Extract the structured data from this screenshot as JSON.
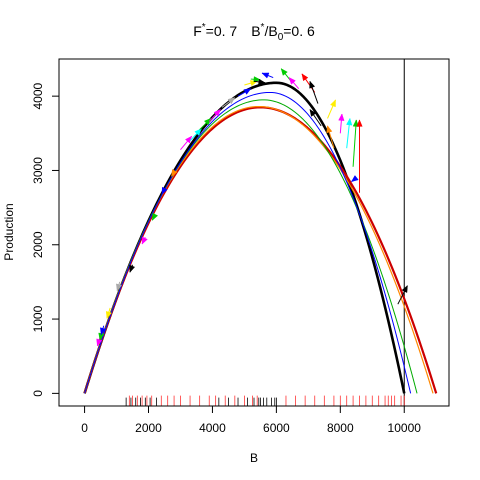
{
  "chart_data": {
    "type": "line",
    "title": {
      "f_label": "F",
      "f_superscript": "*",
      "f_value": "=0. 7",
      "b_label": "B",
      "b_superscript": "*",
      "b_slash": "/B",
      "b_subscript": "0",
      "b_value": "=0. 6"
    },
    "xlabel": "B",
    "ylabel": "Production",
    "xlim": [
      -800,
      11400
    ],
    "ylim": [
      -170,
      4500
    ],
    "x_ticks": [
      0,
      2000,
      4000,
      6000,
      8000,
      10000
    ],
    "x_tick_labels": [
      "0",
      "2000",
      "4000",
      "6000",
      "8000",
      "10000"
    ],
    "y_ticks": [
      0,
      1000,
      2000,
      3000,
      4000
    ],
    "y_tick_labels": [
      "0",
      "1000",
      "2000",
      "3000",
      "4000"
    ],
    "grid": false,
    "vertical_reference_line_x": 10000,
    "curves": [
      {
        "color": "#000000",
        "K": 10000,
        "peak_B": 6000,
        "peak_P": 4180,
        "width": 2.6
      },
      {
        "color": "#cc0000",
        "K": 11000,
        "peak_B": 5500,
        "peak_P": 3850,
        "width": 2.2
      },
      {
        "color": "#ff8800",
        "K": 10900,
        "peak_B": 5450,
        "peak_P": 3860,
        "width": 1.2
      },
      {
        "color": "#00aa00",
        "K": 10400,
        "peak_B": 5600,
        "peak_P": 3950,
        "width": 1.0
      },
      {
        "color": "#0000ff",
        "K": 10200,
        "peak_B": 5800,
        "peak_P": 4050,
        "width": 1.0
      }
    ],
    "arrows": [
      {
        "color": "#ff00ff",
        "x0": 500,
        "y0": 780,
        "x1": 400,
        "y1": 640
      },
      {
        "color": "#00cc00",
        "x0": 550,
        "y0": 850,
        "x1": 480,
        "y1": 720
      },
      {
        "color": "#0000ff",
        "x0": 600,
        "y0": 910,
        "x1": 520,
        "y1": 790
      },
      {
        "color": "#ffee00",
        "x0": 800,
        "y0": 1150,
        "x1": 700,
        "y1": 1010
      },
      {
        "color": "#aaaaaa",
        "x0": 1100,
        "y0": 1500,
        "x1": 1020,
        "y1": 1380
      },
      {
        "color": "#000000",
        "x0": 1500,
        "y0": 1730,
        "x1": 1420,
        "y1": 1630
      },
      {
        "color": "#ff00ff",
        "x0": 1900,
        "y0": 2100,
        "x1": 1800,
        "y1": 2010
      },
      {
        "color": "#00cc00",
        "x0": 2200,
        "y0": 2400,
        "x1": 2120,
        "y1": 2330
      },
      {
        "color": "#0000ff",
        "x0": 2500,
        "y0": 2750,
        "x1": 2420,
        "y1": 2680
      },
      {
        "color": "#ff8800",
        "x0": 2800,
        "y0": 2980,
        "x1": 2720,
        "y1": 2920
      },
      {
        "color": "#ff00ff",
        "x0": 3000,
        "y0": 3280,
        "x1": 3350,
        "y1": 3460
      },
      {
        "color": "#00ffff",
        "x0": 3300,
        "y0": 3400,
        "x1": 3650,
        "y1": 3560
      },
      {
        "color": "#00cc00",
        "x0": 3600,
        "y0": 3550,
        "x1": 3950,
        "y1": 3700
      },
      {
        "color": "#ff00ff",
        "x0": 3900,
        "y0": 3660,
        "x1": 4250,
        "y1": 3820
      },
      {
        "color": "#aaaaaa",
        "x0": 4300,
        "y0": 3850,
        "x1": 4700,
        "y1": 3980
      },
      {
        "color": "#0000ff",
        "x0": 4800,
        "y0": 4000,
        "x1": 5200,
        "y1": 4100
      },
      {
        "color": "#ffee00",
        "x0": 5000,
        "y0": 4150,
        "x1": 5400,
        "y1": 4200
      },
      {
        "color": "#00cc00",
        "x0": 5200,
        "y0": 4230,
        "x1": 5500,
        "y1": 4220
      },
      {
        "color": "#000000",
        "x0": 5300,
        "y0": 4200,
        "x1": 5650,
        "y1": 4180
      },
      {
        "color": "#0000ff",
        "x0": 5900,
        "y0": 4250,
        "x1": 5550,
        "y1": 4310
      },
      {
        "color": "#00cc00",
        "x0": 6500,
        "y0": 4180,
        "x1": 6150,
        "y1": 4370
      },
      {
        "color": "#ff00ff",
        "x0": 6700,
        "y0": 4100,
        "x1": 6400,
        "y1": 4250
      },
      {
        "color": "#ff0000",
        "x0": 7200,
        "y0": 4050,
        "x1": 6800,
        "y1": 4300
      },
      {
        "color": "#000000",
        "x0": 7300,
        "y0": 3900,
        "x1": 7050,
        "y1": 4200
      },
      {
        "color": "#ffee00",
        "x0": 7600,
        "y0": 3700,
        "x1": 7850,
        "y1": 3950
      },
      {
        "color": "#ff00ff",
        "x0": 8000,
        "y0": 3500,
        "x1": 8050,
        "y1": 3760
      },
      {
        "color": "#00ffff",
        "x0": 8200,
        "y0": 3300,
        "x1": 8300,
        "y1": 3700
      },
      {
        "color": "#00cc00",
        "x0": 8400,
        "y0": 3050,
        "x1": 8500,
        "y1": 3680
      },
      {
        "color": "#ff0000",
        "x0": 8600,
        "y0": 2700,
        "x1": 8600,
        "y1": 3680
      },
      {
        "color": "#000000",
        "x0": 7400,
        "y0": 3600,
        "x1": 7050,
        "y1": 3820
      },
      {
        "color": "#ff8800",
        "x0": 7800,
        "y0": 3300,
        "x1": 7600,
        "y1": 3600
      },
      {
        "color": "#0000ff",
        "x0": 8500,
        "y0": 2900,
        "x1": 8350,
        "y1": 2850
      },
      {
        "color": "#000000",
        "x0": 9800,
        "y0": 1200,
        "x1": 10100,
        "y1": 1450
      }
    ],
    "rug_black": [
      1300,
      1450,
      1600,
      1750,
      1900,
      2050,
      2250,
      4200,
      4500,
      4800,
      5100,
      5300,
      5450,
      5500,
      5600,
      5700,
      5850,
      5950,
      6000
    ],
    "rug_red": [
      1400,
      1500,
      1650,
      1800,
      1950,
      2100,
      2400,
      2600,
      2800,
      3000,
      3300,
      3600,
      3900,
      4100,
      4400,
      4700,
      5000,
      5250,
      5400,
      6300,
      6600,
      6900,
      7200,
      7500,
      7800,
      8000,
      8200,
      8400,
      8600,
      8800,
      9000,
      9200,
      9400,
      9500,
      9600,
      9700,
      9900,
      10000
    ]
  }
}
